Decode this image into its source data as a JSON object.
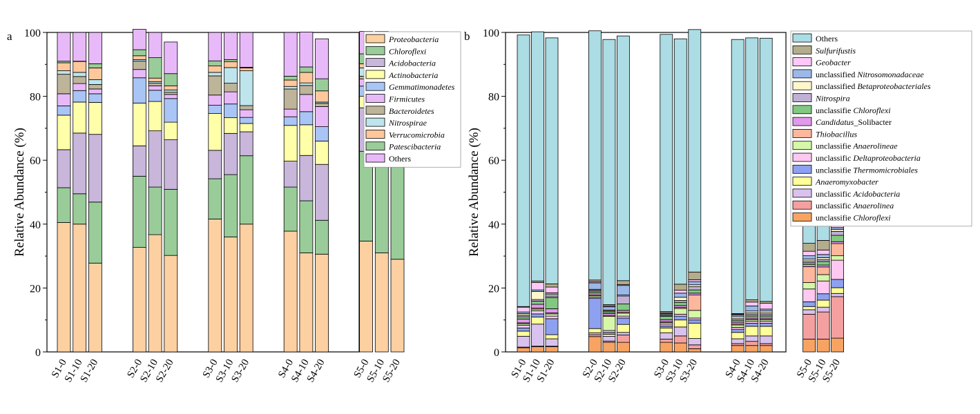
{
  "chart_data": [
    {
      "type": "bar",
      "stacked": true,
      "panel_label": "a",
      "ylabel": "Relative Abundance (%)",
      "ylim": [
        0,
        100
      ],
      "yticks": [
        0,
        20,
        40,
        60,
        80,
        100
      ],
      "categories": [
        "S1-0",
        "S1-10",
        "S1-20",
        "S2-0",
        "S2-10",
        "S2-20",
        "S3-0",
        "S3-10",
        "S3-20",
        "S4-0",
        "S4-10",
        "S4-20",
        "S5-0",
        "S5-10",
        "S5-20"
      ],
      "legend_position": "right",
      "series": [
        {
          "name": "Proteobacteria",
          "italic": true,
          "color": "#FDD0A2",
          "values": [
            40.5,
            40.0,
            27.8,
            32.7,
            36.7,
            30.2,
            41.6,
            36.0,
            40.0,
            37.8,
            31.0,
            30.6,
            34.7,
            31.0,
            29.0
          ]
        },
        {
          "name": "Chloroflexi",
          "italic": true,
          "color": "#99CC99",
          "values": [
            10.9,
            9.5,
            19.1,
            22.3,
            14.9,
            20.7,
            12.6,
            19.5,
            21.4,
            13.8,
            16.3,
            10.6,
            28.1,
            29.3,
            37.5
          ]
        },
        {
          "name": "Acidobacteria",
          "italic": true,
          "color": "#C9B6DB",
          "values": [
            11.9,
            19.0,
            21.2,
            9.5,
            17.6,
            15.5,
            8.9,
            12.9,
            7.5,
            8.1,
            14.2,
            17.5,
            13.6,
            13.8,
            14.7
          ]
        },
        {
          "name": "Actinobacteria",
          "italic": true,
          "color": "#FFFFAA",
          "values": [
            10.8,
            9.7,
            10.0,
            13.4,
            9.2,
            5.5,
            11.5,
            4.9,
            2.6,
            11.2,
            9.6,
            7.3,
            3.6,
            4.4,
            4.9
          ]
        },
        {
          "name": "Gemmatimonadetes",
          "italic": true,
          "color": "#A9C5F5",
          "values": [
            2.9,
            3.6,
            2.7,
            7.9,
            3.5,
            7.4,
            2.6,
            4.3,
            1.9,
            2.7,
            4.1,
            4.5,
            3.2,
            4.1,
            2.9
          ]
        },
        {
          "name": "Firmicutes",
          "italic": true,
          "color": "#E8B9F8",
          "values": [
            3.8,
            2.2,
            1.5,
            2.6,
            1.4,
            1.3,
            3.2,
            3.8,
            2.4,
            2.4,
            5.4,
            6.3,
            2.2,
            2.0,
            0.9
          ]
        },
        {
          "name": "Bacteroidetes",
          "italic": true,
          "color": "#BDB49A",
          "values": [
            6.1,
            2.2,
            1.4,
            2.6,
            0.8,
            0.7,
            6.0,
            2.7,
            1.3,
            6.3,
            2.8,
            1.0,
            0.9,
            1.4,
            0.6
          ]
        },
        {
          "name": "Nitrospirae",
          "italic": true,
          "color": "#BFE5EC",
          "values": [
            1.1,
            1.3,
            1.5,
            0.5,
            0.5,
            0.7,
            1.1,
            4.9,
            10.9,
            0.8,
            0.8,
            0.4,
            2.6,
            2.9,
            1.4
          ]
        },
        {
          "name": "Verrucomicrobia",
          "italic": true,
          "color": "#FFC89C",
          "values": [
            2.5,
            3.4,
            3.7,
            1.2,
            1.1,
            1.3,
            2.0,
            1.8,
            0.9,
            2.0,
            3.3,
            3.5,
            1.3,
            3.4,
            1.8
          ]
        },
        {
          "name": "Patescibacteria",
          "italic": true,
          "color": "#99CC99",
          "values": [
            0.5,
            0.1,
            1.3,
            1.9,
            6.4,
            3.8,
            1.6,
            0.7,
            0.2,
            1.2,
            1.7,
            3.8,
            3.1,
            1.2,
            1.0
          ]
        },
        {
          "name": "Others",
          "italic": false,
          "color": "#E8B9F8",
          "values": [
            9.0,
            9.0,
            9.8,
            6.4,
            7.9,
            9.9,
            8.9,
            8.5,
            10.9,
            13.7,
            10.9,
            12.5,
            7.0,
            6.8,
            5.3
          ]
        }
      ]
    },
    {
      "type": "bar",
      "stacked": true,
      "panel_label": "b",
      "ylabel": "Relative Abundance (%)",
      "ylim": [
        0,
        100
      ],
      "yticks": [
        0,
        20,
        40,
        60,
        80,
        100
      ],
      "categories": [
        "S1-0",
        "S1-10",
        "S1-20",
        "S2-0",
        "S2-10",
        "S2-20",
        "S3-0",
        "S3-10",
        "S3-20",
        "S4-0",
        "S4-10",
        "S4-20",
        "S5-0",
        "S5-10",
        "S5-20"
      ],
      "legend_position": "right",
      "series": [
        {
          "name_parts": [
            [
              "unclassifie ",
              false
            ],
            [
              "Chloroflexi",
              true
            ]
          ],
          "color": "#F7A463",
          "values": [
            1.3,
            1.6,
            1.6,
            4.8,
            3.0,
            3.0,
            3.0,
            2.8,
            1.0,
            2.0,
            2.0,
            2.0,
            4.0,
            4.0,
            4.3
          ]
        },
        {
          "name_parts": [
            [
              "unclassific ",
              false
            ],
            [
              "Anaerolinea",
              true
            ]
          ],
          "color": "#F4A0A0",
          "values": [
            0.2,
            0.2,
            0.2,
            0.6,
            0.4,
            2.3,
            1.0,
            2.2,
            1.2,
            0.6,
            1.3,
            0.6,
            7.8,
            8.5,
            13.0
          ]
        },
        {
          "name_parts": [
            [
              "unclassific ",
              false
            ],
            [
              "Acidobacteria",
              true
            ]
          ],
          "color": "#D9C2EE",
          "values": [
            3.4,
            6.9,
            2.3,
            0.6,
            1.5,
            0.8,
            2.0,
            2.8,
            2.0,
            1.5,
            1.7,
            2.4,
            1.4,
            1.5,
            1.0
          ]
        },
        {
          "name_parts": [
            [
              "Anaeromyxobacter",
              true
            ]
          ],
          "color": "#FFFF99",
          "values": [
            1.6,
            2.2,
            1.3,
            1.3,
            0.6,
            2.5,
            1.5,
            2.2,
            4.8,
            2.0,
            3.0,
            3.0,
            1.0,
            2.2,
            1.8
          ]
        },
        {
          "name_parts": [
            [
              "unclassifie ",
              false
            ],
            [
              "Thermomicrobiales",
              true
            ]
          ],
          "color": "#8EA1F0",
          "values": [
            1.0,
            1.0,
            5.0,
            9.5,
            0.6,
            2.0,
            0.6,
            1.2,
            1.0,
            1.0,
            1.0,
            1.0,
            1.5,
            2.0,
            2.6
          ]
        },
        {
          "name_parts": [
            [
              "unclassific ",
              false
            ],
            [
              "Deltaproteobacteria",
              true
            ]
          ],
          "color": "#FFC8F0",
          "values": [
            0.8,
            1.0,
            0.8,
            0.4,
            0.6,
            0.6,
            0.6,
            0.6,
            0.6,
            0.6,
            0.6,
            0.6,
            4.0,
            4.0,
            6.0
          ]
        },
        {
          "name_parts": [
            [
              "unclassifie ",
              false
            ],
            [
              "Anaerolineae",
              true
            ]
          ],
          "color": "#D6F7A8",
          "values": [
            0.5,
            0.5,
            0.7,
            0.4,
            4.4,
            0.9,
            0.5,
            1.8,
            2.4,
            0.7,
            0.5,
            0.5,
            2.0,
            2.0,
            1.4
          ]
        },
        {
          "name_parts": [
            [
              "Thiobacillus",
              true
            ]
          ],
          "color": "#FDB79C",
          "values": [
            0.3,
            0.3,
            0.3,
            0.3,
            0.3,
            0.3,
            0.3,
            0.3,
            4.8,
            0.3,
            0.3,
            0.3,
            5.0,
            2.4,
            3.8
          ]
        },
        {
          "name_parts": [
            [
              "Candidatus",
              true
            ],
            [
              "_Solibacter",
              false
            ]
          ],
          "color": "#E099EB",
          "values": [
            1.2,
            1.2,
            1.3,
            0.6,
            0.6,
            0.6,
            0.6,
            0.6,
            0.6,
            0.6,
            0.6,
            0.6,
            0.6,
            0.6,
            0.6
          ]
        },
        {
          "name_parts": [
            [
              "unclassifie ",
              false
            ],
            [
              "Chloroflexi",
              true
            ]
          ],
          "color": "#82C882",
          "values": [
            0.7,
            1.0,
            3.5,
            0.5,
            0.5,
            2.0,
            1.0,
            1.0,
            1.0,
            0.6,
            0.6,
            0.6,
            0.6,
            1.1,
            2.0
          ]
        },
        {
          "name_parts": [
            [
              "Nitrospira",
              true
            ]
          ],
          "color": "#C0B0D4",
          "values": [
            0.5,
            0.5,
            0.5,
            0.3,
            0.3,
            2.5,
            0.3,
            0.6,
            1.0,
            0.5,
            0.6,
            0.6,
            0.6,
            0.6,
            1.2
          ]
        },
        {
          "name_parts": [
            [
              "unclassified ",
              false
            ],
            [
              "Betaproteobacteriales",
              true
            ]
          ],
          "color": "#FFF7CC",
          "values": [
            0.5,
            2.5,
            0.5,
            0.3,
            0.3,
            0.3,
            0.3,
            1.0,
            0.6,
            0.6,
            0.6,
            0.6,
            0.6,
            0.6,
            0.6
          ]
        },
        {
          "name_parts": [
            [
              "unclassified ",
              false
            ],
            [
              "Nitrosomonadaceae",
              true
            ]
          ],
          "color": "#9BB8E8",
          "values": [
            0.5,
            0.5,
            0.5,
            2.0,
            1.0,
            3.0,
            0.3,
            1.3,
            1.0,
            0.5,
            1.6,
            0.6,
            1.0,
            1.0,
            0.6
          ]
        },
        {
          "name_parts": [
            [
              "Geobacter",
              true
            ]
          ],
          "color": "#FFC8F8",
          "values": [
            1.5,
            2.3,
            1.8,
            0.3,
            0.3,
            0.3,
            0.3,
            0.9,
            0.6,
            0.3,
            1.2,
            1.8,
            1.4,
            1.4,
            0.6
          ]
        },
        {
          "name_parts": [
            [
              "Sulfurifustis",
              true
            ]
          ],
          "color": "#B3AD8C",
          "values": [
            0.2,
            0.5,
            1.0,
            0.6,
            0.4,
            1.2,
            0.3,
            1.9,
            2.4,
            0.2,
            0.7,
            0.6,
            2.5,
            3.0,
            4.3
          ]
        },
        {
          "name_parts": [
            [
              "Others",
              false
            ]
          ],
          "color": "#ACDCE4",
          "values": [
            85.0,
            78.0,
            77.0,
            78.0,
            83.0,
            76.6,
            86.8,
            76.8,
            75.9,
            85.8,
            82.0,
            82.4,
            64.0,
            63.7,
            55.9
          ]
        }
      ]
    }
  ]
}
